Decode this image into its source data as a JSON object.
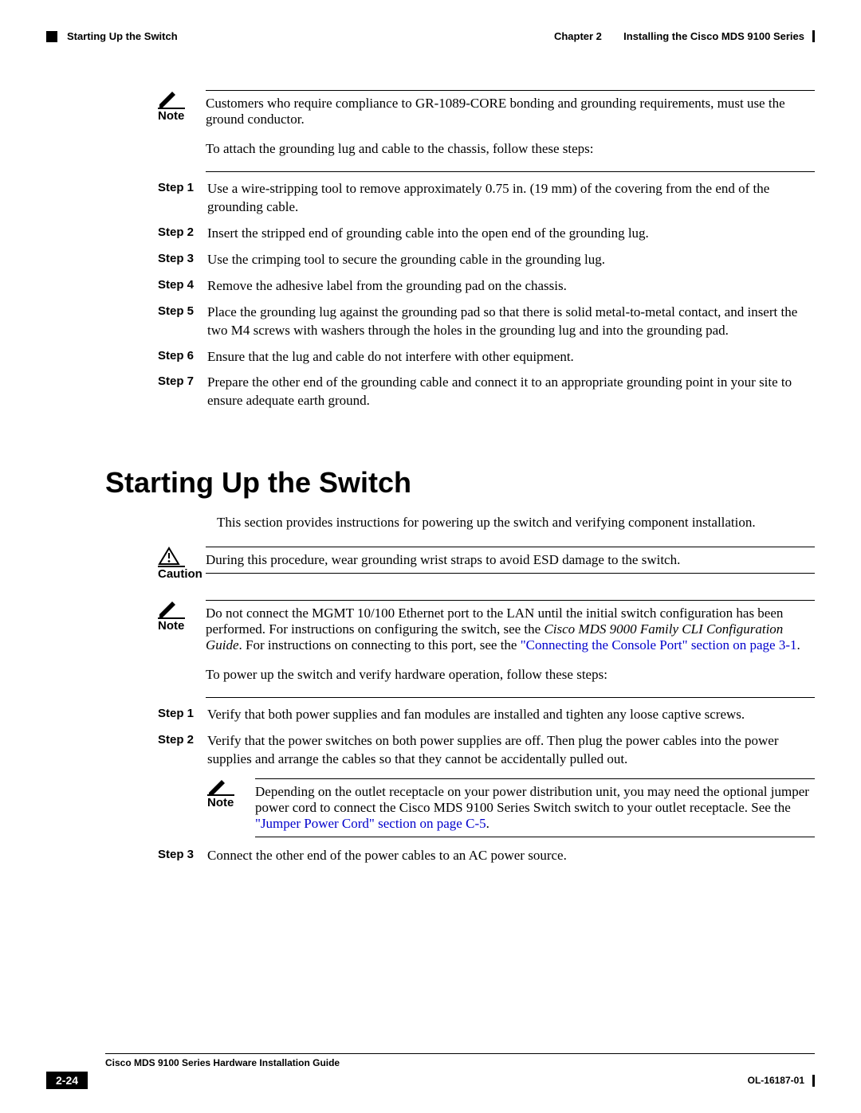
{
  "header": {
    "section_title": "Starting Up the Switch",
    "chapter_label": "Chapter 2",
    "chapter_title": "Installing the Cisco MDS 9100 Series"
  },
  "note1": {
    "label": "Note",
    "text": "Customers who require compliance to GR-1089-CORE bonding and grounding requirements, must use the ground conductor."
  },
  "para_attach": "To attach the grounding lug and cable to the chassis, follow these steps:",
  "steps_a": [
    {
      "label": "Step 1",
      "text": "Use a wire-stripping tool to remove approximately 0.75 in. (19 mm) of the covering from the end of the grounding cable."
    },
    {
      "label": "Step 2",
      "text": "Insert the stripped end of grounding cable into the open end of the grounding lug."
    },
    {
      "label": "Step 3",
      "text": "Use the crimping tool to secure the grounding cable in the grounding lug."
    },
    {
      "label": "Step 4",
      "text": "Remove the adhesive label from the grounding pad on the chassis."
    },
    {
      "label": "Step 5",
      "text": "Place the grounding lug against the grounding pad so that there is solid metal-to-metal contact, and insert the two M4 screws with washers through the holes in the grounding lug and into the grounding pad."
    },
    {
      "label": "Step 6",
      "text": "Ensure that the lug and cable do not interfere with other equipment."
    },
    {
      "label": "Step 7",
      "text": "Prepare the other end of the grounding cable and connect it to an appropriate grounding point in your site to ensure adequate earth ground."
    }
  ],
  "h1": "Starting Up the Switch",
  "para_intro": "This section provides instructions for powering up the switch and verifying component installation.",
  "caution": {
    "label": "Caution",
    "text": "During this procedure, wear grounding wrist straps to avoid ESD damage to the switch."
  },
  "note2": {
    "label": "Note",
    "text_a": "Do not connect the MGMT 10/100 Ethernet port to the LAN until the initial switch configuration has been performed. For instructions on configuring the switch, see the ",
    "italic": "Cisco MDS 9000 Family CLI Configuration Guide",
    "text_b": ". For instructions on connecting to this port, see the ",
    "link": "\"Connecting the Console Port\" section on page 3-1",
    "text_c": "."
  },
  "para_power": "To power up the switch and verify hardware operation, follow these steps:",
  "steps_b": [
    {
      "label": "Step 1",
      "text": "Verify that both power supplies and fan modules are installed and tighten any loose captive screws."
    },
    {
      "label": "Step 2",
      "text": "Verify that the power switches on both power supplies are off. Then plug the power cables into the power supplies and arrange the cables so that they cannot be accidentally pulled out."
    },
    {
      "label": "Step 3",
      "text": "Connect the other end of the power cables to an AC power source."
    }
  ],
  "nested_note": {
    "label": "Note",
    "text_a": "Depending on the outlet receptacle on your power distribution unit, you may need the optional jumper power cord to connect the Cisco MDS 9100 Series Switch switch to your outlet receptacle. See the ",
    "link": "\"Jumper Power Cord\" section on page C-5",
    "text_b": "."
  },
  "footer": {
    "guide_title": "Cisco MDS 9100 Series Hardware Installation Guide",
    "page_num": "2-24",
    "doc_id": "OL-16187-01"
  }
}
